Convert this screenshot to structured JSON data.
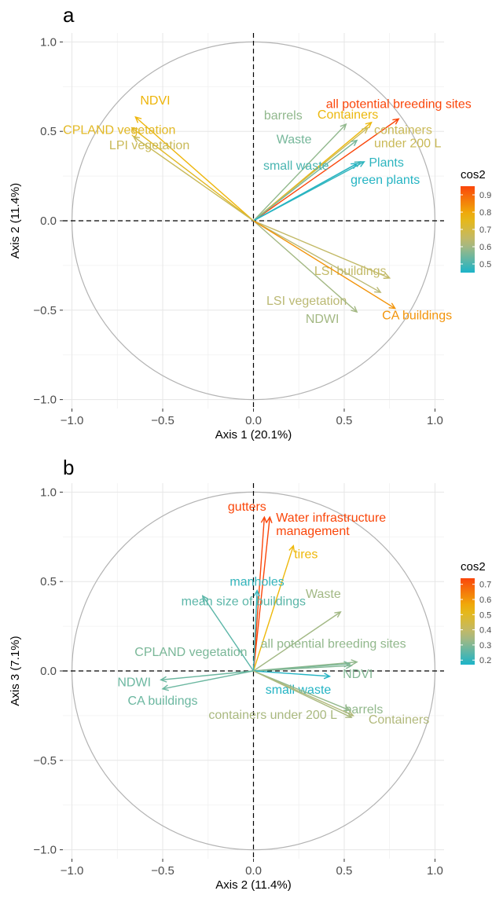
{
  "chart_data": [
    {
      "type": "scatter",
      "panel_label": "a",
      "xlabel": "Axis 1 (20.1%)",
      "ylabel": "Axis 2 (11.4%)",
      "xlim": [
        -1.05,
        1.05
      ],
      "ylim": [
        -1.05,
        1.05
      ],
      "xticks": [
        -1.0,
        -0.5,
        0.0,
        0.5,
        1.0
      ],
      "yticks": [
        -1.0,
        -0.5,
        0.0,
        0.5,
        1.0
      ],
      "xtick_labels": [
        "−1.0",
        "−0.5",
        "0.0",
        "0.5",
        "1.0"
      ],
      "ytick_labels": [
        "−1.0",
        "−0.5",
        "0.0",
        "0.5",
        "1.0"
      ],
      "grid": true,
      "unit_circle": true,
      "legend": {
        "title": "cos2",
        "placement": "right",
        "ticks": [
          0.5,
          0.6,
          0.7,
          0.8,
          0.9
        ],
        "range": [
          0.45,
          0.95
        ]
      },
      "vectors": [
        {
          "label": "all potential breeding sites",
          "x": 0.8,
          "y": 0.57,
          "cos2": 0.95
        },
        {
          "label": "Containers",
          "x": 0.65,
          "y": 0.55,
          "cos2": 0.77
        },
        {
          "label": "containers under 200 L",
          "x": 0.63,
          "y": 0.52,
          "cos2": 0.67
        },
        {
          "label": "barrels",
          "x": 0.51,
          "y": 0.54,
          "cos2": 0.58
        },
        {
          "label": "Waste",
          "x": 0.57,
          "y": 0.45,
          "cos2": 0.55
        },
        {
          "label": "small waste",
          "x": 0.59,
          "y": 0.33,
          "cos2": 0.5
        },
        {
          "label": "Plants",
          "x": 0.61,
          "y": 0.33,
          "cos2": 0.47
        },
        {
          "label": "green plants",
          "x": 0.57,
          "y": 0.32,
          "cos2": 0.46
        },
        {
          "label": "NDVI",
          "x": -0.65,
          "y": 0.58,
          "cos2": 0.78
        },
        {
          "label": "CPLAND vegetation",
          "x": -0.67,
          "y": 0.52,
          "cos2": 0.74
        },
        {
          "label": "LPI vegetation",
          "x": -0.66,
          "y": 0.47,
          "cos2": 0.67
        },
        {
          "label": "LSI buildings",
          "x": 0.75,
          "y": -0.32,
          "cos2": 0.65
        },
        {
          "label": "LSI vegetation",
          "x": 0.7,
          "y": -0.4,
          "cos2": 0.63
        },
        {
          "label": "NDWI",
          "x": 0.57,
          "y": -0.51,
          "cos2": 0.6
        },
        {
          "label": "CA buildings",
          "x": 0.78,
          "y": -0.49,
          "cos2": 0.83
        }
      ]
    },
    {
      "type": "scatter",
      "panel_label": "b",
      "xlabel": "Axis 2 (11.4%)",
      "ylabel": "Axis 3 (7.1%)",
      "xlim": [
        -1.05,
        1.05
      ],
      "ylim": [
        -1.05,
        1.05
      ],
      "xticks": [
        -1.0,
        -0.5,
        0.0,
        0.5,
        1.0
      ],
      "yticks": [
        -1.0,
        -0.5,
        0.0,
        0.5,
        1.0
      ],
      "xtick_labels": [
        "−1.0",
        "−0.5",
        "0.0",
        "0.5",
        "1.0"
      ],
      "ytick_labels": [
        "−1.0",
        "−0.5",
        "0.0",
        "0.5",
        "1.0"
      ],
      "grid": true,
      "unit_circle": true,
      "legend": {
        "title": "cos2",
        "placement": "right",
        "ticks": [
          0.2,
          0.3,
          0.4,
          0.5,
          0.6,
          0.7
        ],
        "range": [
          0.17,
          0.74
        ]
      },
      "vectors": [
        {
          "label": "gutters",
          "x": 0.06,
          "y": 0.86,
          "cos2": 0.74
        },
        {
          "label": "Water infrastructure management",
          "x": 0.09,
          "y": 0.86,
          "cos2": 0.74
        },
        {
          "label": "tires",
          "x": 0.22,
          "y": 0.7,
          "cos2": 0.54
        },
        {
          "label": "manholes",
          "x": 0.02,
          "y": 0.45,
          "cos2": 0.2
        },
        {
          "label": "mean size of buildings",
          "x": -0.28,
          "y": 0.42,
          "cos2": 0.25
        },
        {
          "label": "Waste",
          "x": 0.48,
          "y": 0.33,
          "cos2": 0.34
        },
        {
          "label": "all potential breeding sites",
          "x": 0.57,
          "y": 0.05,
          "cos2": 0.32
        },
        {
          "label": "CPLAND vegetation",
          "x": 0.53,
          "y": 0.04,
          "cos2": 0.29
        },
        {
          "label": "NDVI",
          "x": 0.54,
          "y": 0.03,
          "cos2": 0.3
        },
        {
          "label": "small waste",
          "x": 0.42,
          "y": -0.03,
          "cos2": 0.18
        },
        {
          "label": "NDWI",
          "x": -0.51,
          "y": -0.05,
          "cos2": 0.27
        },
        {
          "label": "CA buildings",
          "x": -0.5,
          "y": -0.1,
          "cos2": 0.27
        },
        {
          "label": "barrels",
          "x": 0.53,
          "y": -0.22,
          "cos2": 0.32
        },
        {
          "label": "Containers",
          "x": 0.55,
          "y": -0.25,
          "cos2": 0.36
        },
        {
          "label": "containers under 200 L",
          "x": 0.54,
          "y": -0.26,
          "cos2": 0.35
        }
      ]
    }
  ]
}
